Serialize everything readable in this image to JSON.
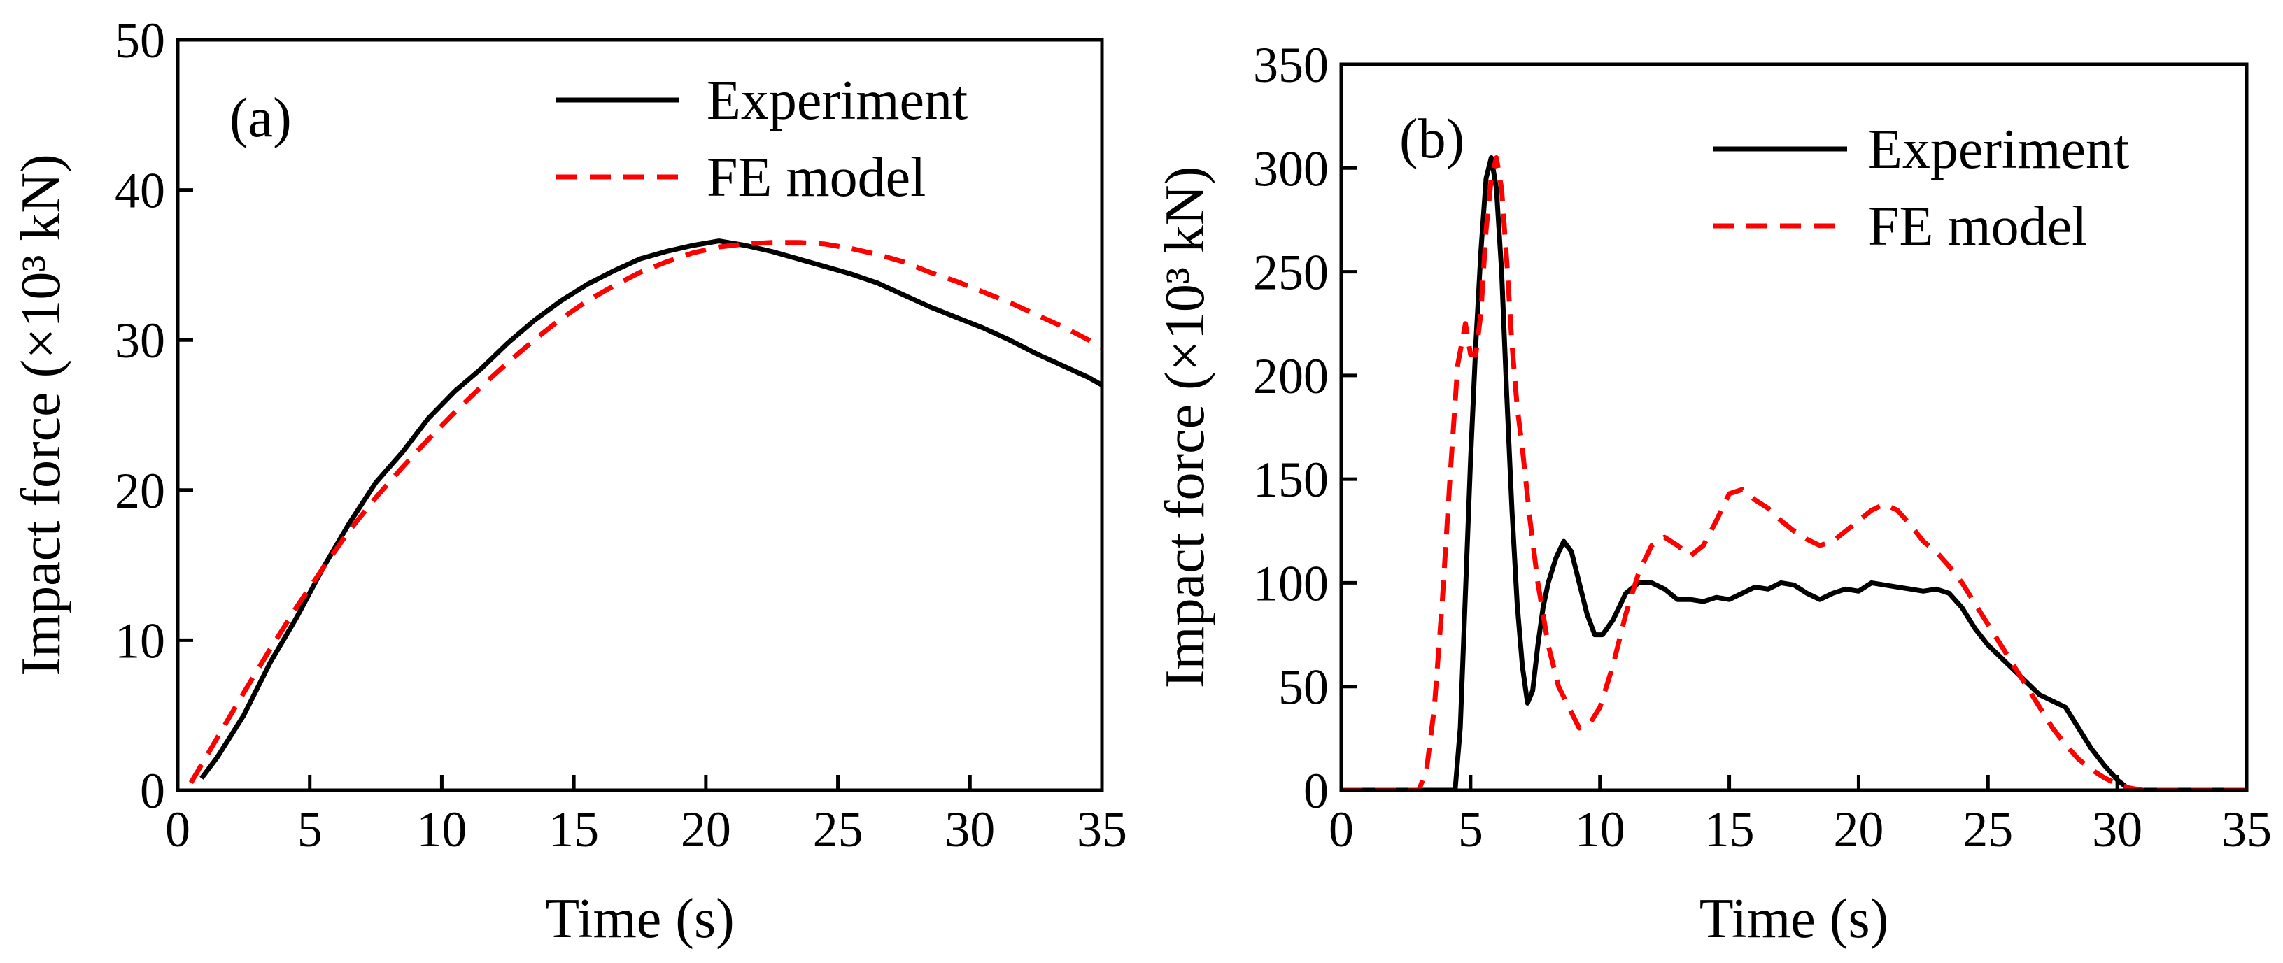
{
  "chart_data": [
    {
      "type": "line",
      "panel_label": "(a)",
      "xlabel": "Time (s)",
      "ylabel": "Impact force (×10³ kN)",
      "xlim": [
        0,
        35
      ],
      "ylim": [
        0,
        50
      ],
      "xticks": [
        "0",
        "5",
        "10",
        "15",
        "20",
        "25",
        "30",
        "35"
      ],
      "yticks": [
        "0",
        "10",
        "20",
        "30",
        "40",
        "50"
      ],
      "legend_position": "top-right",
      "series": [
        {
          "name": "Experiment",
          "style": "solid",
          "color": "#000000",
          "x": [
            0.9,
            1.5,
            2.5,
            3.5,
            4.5,
            5.5,
            6.5,
            7.5,
            8.5,
            9.5,
            10.5,
            11.5,
            12.5,
            13.5,
            14.5,
            15.5,
            16.5,
            17.5,
            18.5,
            19.5,
            20.5,
            21.5,
            22.5,
            23.5,
            24.5,
            25.5,
            26.5,
            27.5,
            28.5,
            29.5,
            30.5,
            31.5,
            32.5,
            33.5,
            34.5,
            35
          ],
          "y": [
            0.8,
            2.2,
            5.0,
            8.5,
            11.5,
            14.8,
            17.8,
            20.5,
            22.5,
            24.8,
            26.6,
            28.1,
            29.8,
            31.3,
            32.6,
            33.7,
            34.6,
            35.4,
            35.9,
            36.3,
            36.6,
            36.3,
            35.9,
            35.4,
            34.9,
            34.4,
            33.8,
            33.0,
            32.2,
            31.5,
            30.8,
            30.0,
            29.1,
            28.3,
            27.5,
            27.0
          ]
        },
        {
          "name": "FE model",
          "style": "dashed",
          "color": "#ff0000",
          "x": [
            0.5,
            1.5,
            2.5,
            3.5,
            4.5,
            5.5,
            6.5,
            7.5,
            8.5,
            9.5,
            10.5,
            11.5,
            12.5,
            13.5,
            14.5,
            15.5,
            16.5,
            17.5,
            18.5,
            19.5,
            20.5,
            21.5,
            22.5,
            23.5,
            24.5,
            25.5,
            26.5,
            27.5,
            28.5,
            29.5,
            30.5,
            31.5,
            32.5,
            33.5,
            34.5,
            35
          ],
          "y": [
            0.5,
            3.5,
            6.5,
            9.4,
            12.2,
            14.8,
            17.3,
            19.5,
            21.5,
            23.4,
            25.2,
            26.9,
            28.5,
            30.0,
            31.4,
            32.6,
            33.6,
            34.5,
            35.2,
            35.8,
            36.2,
            36.4,
            36.5,
            36.5,
            36.4,
            36.1,
            35.7,
            35.2,
            34.5,
            33.9,
            33.2,
            32.5,
            31.7,
            30.9,
            30.0,
            29.5
          ]
        }
      ]
    },
    {
      "type": "line",
      "panel_label": "(b)",
      "xlabel": "Time (s)",
      "ylabel": "Impact force (×10³ kN)",
      "xlim": [
        0,
        35
      ],
      "ylim": [
        0,
        350
      ],
      "xticks": [
        "0",
        "5",
        "10",
        "15",
        "20",
        "25",
        "30",
        "35"
      ],
      "yticks": [
        "0",
        "50",
        "100",
        "150",
        "200",
        "250",
        "300",
        "350"
      ],
      "legend_position": "top-right",
      "series": [
        {
          "name": "Experiment",
          "style": "solid",
          "color": "#000000",
          "x": [
            0,
            4.4,
            4.6,
            4.8,
            5.0,
            5.2,
            5.4,
            5.6,
            5.8,
            6.0,
            6.2,
            6.4,
            6.6,
            6.8,
            7.0,
            7.2,
            7.4,
            7.6,
            7.8,
            8.0,
            8.3,
            8.6,
            8.9,
            9.2,
            9.5,
            9.8,
            10.1,
            10.5,
            11.0,
            11.5,
            12.0,
            12.5,
            13.0,
            13.5,
            14.0,
            14.5,
            15.0,
            15.5,
            16.0,
            16.5,
            17.0,
            17.5,
            18.0,
            18.5,
            19.0,
            19.5,
            20.0,
            20.5,
            21.0,
            21.5,
            22.0,
            22.5,
            23.0,
            23.5,
            24.0,
            24.5,
            25.0,
            25.5,
            26.0,
            26.5,
            27.0,
            27.5,
            28.0,
            28.5,
            29.0,
            29.5,
            30.0,
            30.5,
            31.0,
            33,
            35
          ],
          "y": [
            0,
            0,
            30,
            95,
            160,
            215,
            260,
            295,
            305,
            290,
            250,
            190,
            135,
            90,
            60,
            42,
            48,
            70,
            88,
            100,
            112,
            120,
            115,
            100,
            85,
            75,
            75,
            82,
            95,
            100,
            100,
            97,
            92,
            92,
            91,
            93,
            92,
            95,
            98,
            97,
            100,
            99,
            95,
            92,
            95,
            97,
            96,
            100,
            99,
            98,
            97,
            96,
            97,
            95,
            88,
            78,
            70,
            64,
            58,
            52,
            46,
            43,
            40,
            30,
            20,
            12,
            5,
            0,
            0,
            0,
            0
          ]
        },
        {
          "name": "FE model",
          "style": "dashed",
          "color": "#ff0000",
          "x": [
            0,
            3.0,
            3.3,
            3.6,
            3.9,
            4.2,
            4.5,
            4.8,
            5.0,
            5.2,
            5.4,
            5.6,
            5.8,
            6.0,
            6.2,
            6.4,
            6.6,
            6.8,
            7.0,
            7.3,
            7.6,
            8.0,
            8.4,
            8.8,
            9.2,
            9.6,
            10.0,
            10.5,
            11.0,
            11.5,
            12.0,
            12.5,
            13.0,
            13.5,
            14.0,
            14.5,
            15.0,
            15.5,
            16.0,
            16.5,
            17.0,
            17.5,
            18.0,
            18.5,
            19.0,
            19.5,
            20.0,
            20.5,
            21.0,
            21.5,
            22.0,
            22.5,
            23.0,
            23.5,
            24.0,
            24.5,
            25.0,
            25.5,
            26.0,
            26.5,
            27.0,
            27.5,
            28.0,
            28.5,
            29.0,
            29.5,
            30.0,
            30.5,
            31.0,
            33,
            35
          ],
          "y": [
            0,
            0,
            10,
            40,
            90,
            150,
            205,
            225,
            210,
            210,
            230,
            270,
            295,
            305,
            290,
            255,
            215,
            185,
            165,
            130,
            100,
            70,
            50,
            40,
            30,
            32,
            40,
            60,
            85,
            105,
            118,
            122,
            118,
            113,
            118,
            130,
            143,
            145,
            140,
            136,
            130,
            125,
            121,
            118,
            120,
            125,
            130,
            135,
            138,
            135,
            128,
            120,
            115,
            108,
            100,
            90,
            80,
            70,
            60,
            50,
            40,
            30,
            22,
            15,
            10,
            6,
            3,
            1,
            0,
            0,
            0
          ]
        }
      ]
    }
  ]
}
